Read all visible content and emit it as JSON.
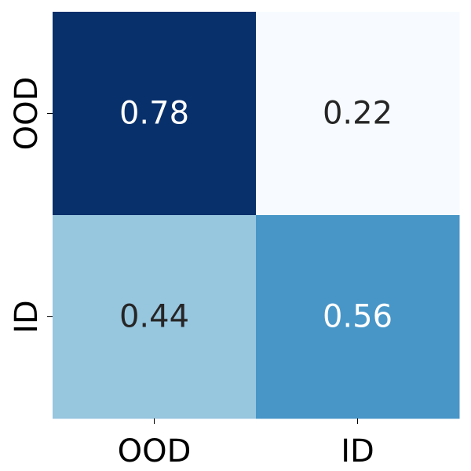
{
  "chart_data": {
    "type": "heatmap",
    "title": "",
    "xlabel": "",
    "ylabel": "",
    "x_categories": [
      "OOD",
      "ID"
    ],
    "y_categories": [
      "OOD",
      "ID"
    ],
    "values": [
      [
        0.78,
        0.22
      ],
      [
        0.44,
        0.56
      ]
    ],
    "value_labels": [
      [
        "0.78",
        "0.22"
      ],
      [
        "0.44",
        "0.56"
      ]
    ],
    "value_range": [
      0,
      1
    ],
    "colormap": "Blues",
    "colorbar": false,
    "grid": false,
    "colors": {
      "text_dark": "#262626",
      "text_light": "#ffffff"
    }
  }
}
